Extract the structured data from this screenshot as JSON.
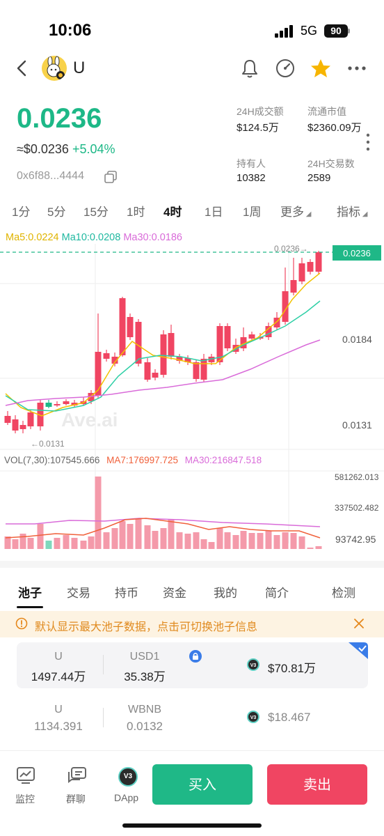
{
  "status": {
    "time": "10:06",
    "network": "5G",
    "battery": "90"
  },
  "header": {
    "token_name": "U"
  },
  "price": {
    "main": "0.0236",
    "usd": "≈$0.0236",
    "change": "+5.04%",
    "address": "0x6f88...4444"
  },
  "stats": [
    {
      "label": "24H成交额",
      "value": "$124.5万"
    },
    {
      "label": "流通市值",
      "value": "$2360.09万"
    },
    {
      "label": "持有人",
      "value": "10382"
    },
    {
      "label": "24H交易数",
      "value": "2589"
    }
  ],
  "timeframes": [
    "1分",
    "5分",
    "15分",
    "1时",
    "4时",
    "1日",
    "1周",
    "更多",
    "指标"
  ],
  "active_timeframe": "4时",
  "ma": {
    "ma5": "Ma5:0.0224",
    "ma10": "Ma10:0.0208",
    "ma30": "Ma30:0.0186"
  },
  "vol": {
    "vol": "VOL(7,30):107545.666",
    "ma7": "MA7:176997.725",
    "ma30": "MA30:216847.518"
  },
  "chart_data": {
    "type": "candlestick",
    "price_labels": [
      "0.0184",
      "0.0131"
    ],
    "current_price_tag": "0.0236",
    "high_marker": "0.0236→",
    "low_marker": "←0.0131",
    "volume_labels": [
      "581262.013",
      "337502.482",
      "93742.95"
    ],
    "watermark": "Ave.ai",
    "colors": {
      "up": "#1db887",
      "down": "#f04562",
      "ma5": "#f2c200",
      "ma10": "#2ecfa6",
      "ma30": "#d96bd9"
    }
  },
  "tabs": [
    "池子",
    "交易",
    "持币",
    "资金",
    "我的",
    "简介",
    "检测"
  ],
  "notice": "默认显示最大池子数据，点击可切换池子信息",
  "pools": [
    {
      "token_a": "U",
      "amount_a": "1497.44万",
      "token_b": "USD1",
      "amount_b": "35.38万",
      "value": "$70.81万",
      "badge": "V3"
    },
    {
      "token_a": "U",
      "amount_a": "1134.391",
      "token_b": "WBNB",
      "amount_b": "0.0132",
      "value": "$18.467",
      "badge": "V3"
    }
  ],
  "bottom_nav": [
    {
      "label": "监控",
      "icon": "monitor-icon"
    },
    {
      "label": "群聊",
      "icon": "chat-icon"
    },
    {
      "label": "DApp",
      "icon": "dapp-icon"
    }
  ],
  "actions": {
    "buy": "买入",
    "sell": "卖出"
  }
}
